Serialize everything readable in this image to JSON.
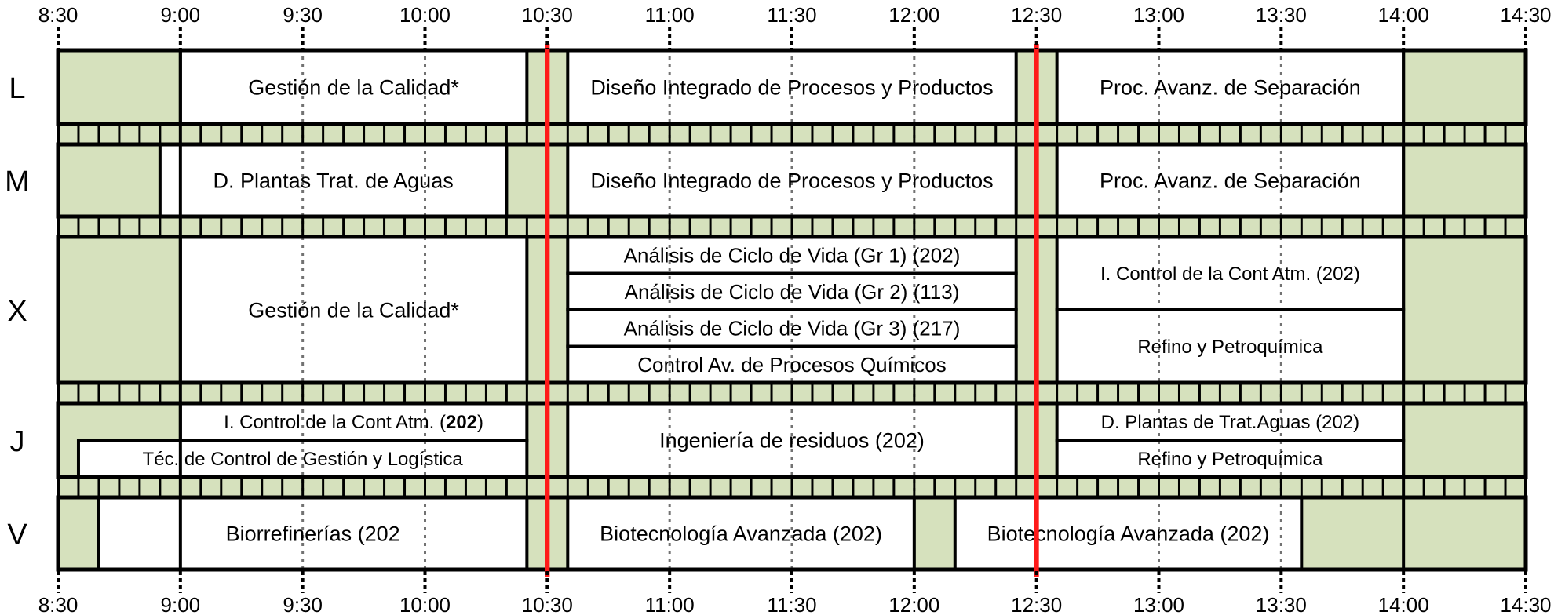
{
  "colors": {
    "free_slot": "#d6e1bd",
    "course_fill": "#ffffff",
    "border": "#000000",
    "marker": "#ff1a1a"
  },
  "time_axis": {
    "start": "8:30",
    "end": "14:30",
    "step_minutes": 30,
    "labels": [
      "8:30",
      "9:00",
      "9:30",
      "10:00",
      "10:30",
      "11:00",
      "11:30",
      "12:00",
      "12:30",
      "13:00",
      "13:30",
      "14:00",
      "14:30"
    ]
  },
  "marker_lines": [
    "10:30",
    "12:30"
  ],
  "days": [
    {
      "label": "L",
      "courses": [
        {
          "text": "Gestión de la Calidad*",
          "start": "9:00",
          "end": "10:25",
          "lane": 0,
          "lanes": 1
        },
        {
          "text": "Diseño Integrado de Procesos y Productos",
          "start": "10:35",
          "end": "12:25",
          "lane": 0,
          "lanes": 1
        },
        {
          "text": "Proc. Avanz. de Separación",
          "start": "12:35",
          "end": "14:00",
          "lane": 0,
          "lanes": 1
        }
      ]
    },
    {
      "label": "M",
      "courses": [
        {
          "text": "D. Plantas Trat. de Aguas",
          "start": "8:55",
          "end": "10:20",
          "lane": 0,
          "lanes": 1
        },
        {
          "text": "Diseño Integrado de Procesos y Productos",
          "start": "10:35",
          "end": "12:25",
          "lane": 0,
          "lanes": 1
        },
        {
          "text": "Proc. Avanz. de Separación",
          "start": "12:35",
          "end": "14:00",
          "lane": 0,
          "lanes": 1
        }
      ]
    },
    {
      "label": "X",
      "courses": [
        {
          "text": "Gestión de la Calidad*",
          "start": "9:00",
          "end": "10:25",
          "lane": 0,
          "lanes": 1
        },
        {
          "text": "Análisis de Ciclo de Vida (Gr 1) (202)",
          "start": "10:35",
          "end": "12:25",
          "lane": 0,
          "lanes": 4
        },
        {
          "text": "Análisis de Ciclo de Vida (Gr 2) (113)",
          "start": "10:35",
          "end": "12:25",
          "lane": 1,
          "lanes": 4
        },
        {
          "text": "Análisis de Ciclo de Vida (Gr 3) (217)",
          "start": "10:35",
          "end": "12:25",
          "lane": 2,
          "lanes": 4
        },
        {
          "text": "Control Av. de Procesos Químicos",
          "start": "10:35",
          "end": "12:25",
          "lane": 3,
          "lanes": 4
        },
        {
          "text": "I. Control de la Cont Atm.  (202)",
          "start": "12:35",
          "end": "14:00",
          "lane": 0,
          "lanes": 2
        },
        {
          "text": "Refino y Petroquímica",
          "start": "12:35",
          "end": "14:00",
          "lane": 1,
          "lanes": 2
        }
      ]
    },
    {
      "label": "J",
      "courses": [
        {
          "text": "I. Control de la Cont Atm. (",
          "bold": "202",
          "after": ")",
          "start": "9:00",
          "end": "10:25",
          "lane": 0,
          "lanes": 2
        },
        {
          "text": "Téc. de Control de Gestión y Logística",
          "start": "8:35",
          "end": "10:25",
          "lane": 1,
          "lanes": 2
        },
        {
          "text": "Ingeniería de residuos  (202)",
          "start": "10:35",
          "end": "12:25",
          "lane": 0,
          "lanes": 1
        },
        {
          "text": "D. Plantas de Trat.Aguas  (202)",
          "start": "12:35",
          "end": "14:00",
          "lane": 0,
          "lanes": 2
        },
        {
          "text": "Refino y Petroquímica",
          "start": "12:35",
          "end": "14:00",
          "lane": 1,
          "lanes": 2
        }
      ]
    },
    {
      "label": "V",
      "courses": [
        {
          "text": "Biorrefinerías (202",
          "start": "8:40",
          "end": "10:25",
          "lane": 0,
          "lanes": 1
        },
        {
          "text": "Biotecnología Avanzada (202)",
          "start": "10:35",
          "end": "12:00",
          "lane": 0,
          "lanes": 1
        },
        {
          "text": "Biotecnología Avanzada (202)",
          "start": "12:10",
          "end": "13:35",
          "lane": 0,
          "lanes": 1
        }
      ]
    }
  ]
}
